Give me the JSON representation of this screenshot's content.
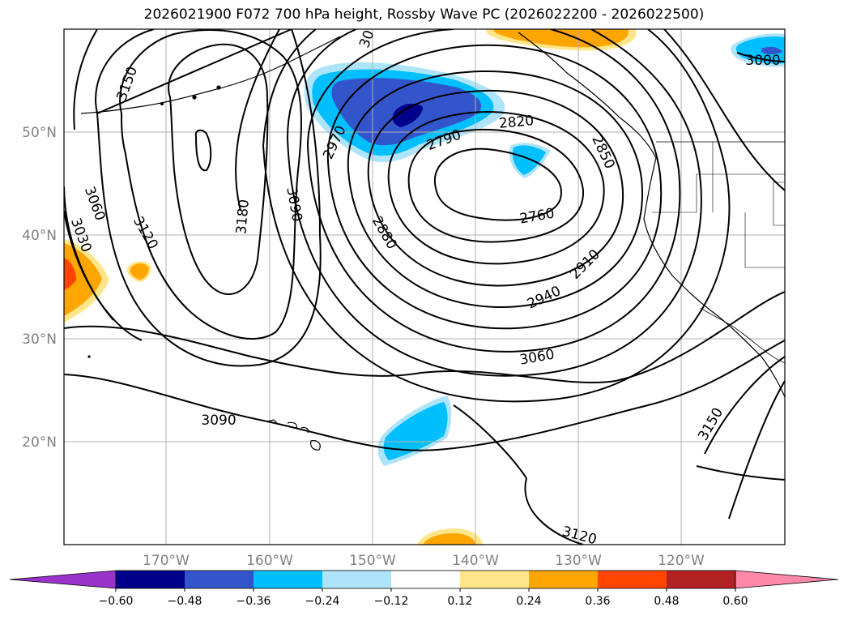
{
  "title": "2026021900 F072 700 hPa height, Rossby Wave PC (2026022200 - 2026022500)",
  "lat_labels": [
    "50°N",
    "40°N",
    "30°N",
    "20°N"
  ],
  "lon_labels": [
    "170°W",
    "160°W",
    "150°W",
    "140°W",
    "130°W",
    "120°W"
  ],
  "contour_labels": [
    "3150",
    "3060",
    "3030",
    "3120",
    "3180",
    "3090",
    "2970",
    "2880",
    "2790",
    "2820",
    "2850",
    "2760",
    "2910",
    "2940",
    "3060",
    "3090",
    "3150",
    "3120",
    "3000",
    "30"
  ],
  "colorbar": {
    "ticks": [
      "−0.60",
      "−0.48",
      "−0.36",
      "−0.24",
      "−0.12",
      "0.12",
      "0.24",
      "0.36",
      "0.48",
      "0.60"
    ],
    "colors": [
      "#9933cc",
      "#00008b",
      "#3355cc",
      "#00bfff",
      "#aee4fa",
      "#ffffff",
      "#ffe68a",
      "#ffa500",
      "#ff4500",
      "#b22222",
      "#ff88aa"
    ]
  },
  "colors": {
    "pos_light": "#ffe68a",
    "pos_mid": "#ffa500",
    "pos_strong": "#ff4500",
    "neg_light": "#aee4fa",
    "neg_mid": "#00bfff",
    "neg_strong": "#3355cc",
    "neg_max": "#00008b",
    "grid": "#b0b0b0",
    "contour": "#000000"
  }
}
